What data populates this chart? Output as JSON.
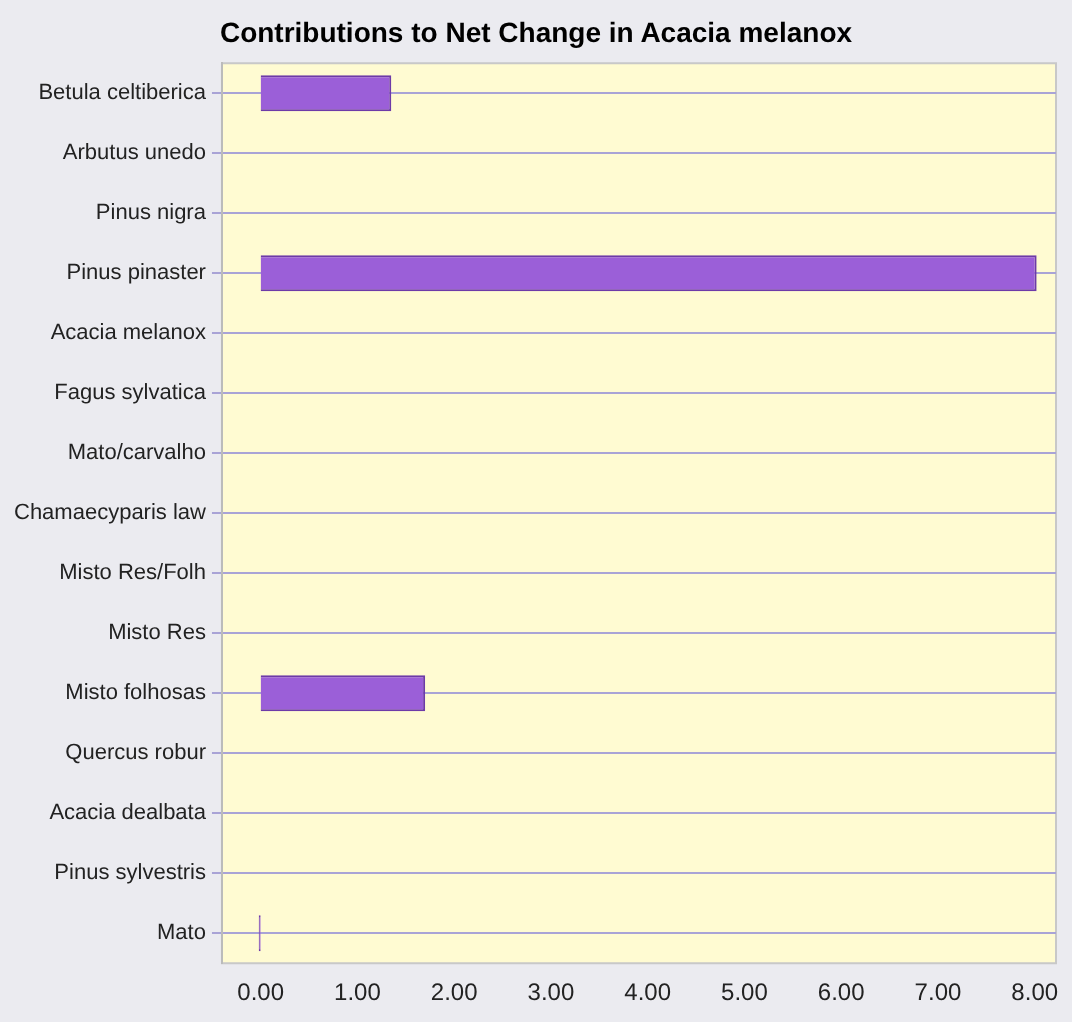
{
  "chart_data": {
    "type": "bar",
    "orientation": "horizontal",
    "title": "Contributions to Net Change in Acacia melanox",
    "categories": [
      "Betula celtiberica",
      "Arbutus unedo",
      "Pinus nigra",
      "Pinus pinaster",
      "Acacia melanox",
      "Fagus sylvatica",
      "Mato/carvalho",
      "Chamaecyparis law",
      "Misto Res/Folh",
      "Misto Res",
      "Misto folhosas",
      "Quercus robur",
      "Acacia dealbata",
      "Pinus sylvestris",
      "Mato"
    ],
    "values": [
      1.35,
      0,
      0,
      8.02,
      0,
      0,
      0,
      0,
      0,
      0,
      1.7,
      0,
      0,
      0,
      -0.02
    ],
    "color": "#9b5fd8",
    "xlim": [
      -0.4,
      8.22
    ],
    "xticks": [
      {
        "value": 0,
        "label": "0.00"
      },
      {
        "value": 1,
        "label": "1.00"
      },
      {
        "value": 2,
        "label": "2.00"
      },
      {
        "value": 3,
        "label": "3.00"
      },
      {
        "value": 4,
        "label": "4.00"
      },
      {
        "value": 5,
        "label": "5.00"
      },
      {
        "value": 6,
        "label": "6.00"
      },
      {
        "value": 7,
        "label": "7.00"
      },
      {
        "value": 8,
        "label": "8.00"
      }
    ],
    "grid": "y",
    "legend": false
  }
}
